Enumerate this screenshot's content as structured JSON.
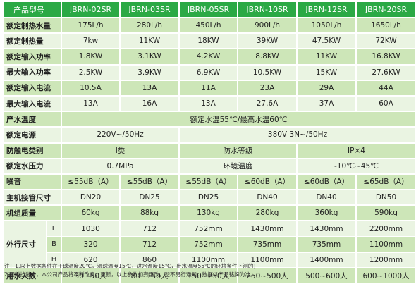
{
  "header": {
    "label": "产品型号",
    "models": [
      "JBRN-02SR",
      "JBRN-03SR",
      "JBRN-05SR",
      "JBRN-10SR",
      "JBRN-12SR",
      "JBRN-20SR"
    ]
  },
  "rows": [
    {
      "label": "额定制热水量",
      "values": [
        "175L/h",
        "280L/h",
        "450L/h",
        "900L/h",
        "1050L/h",
        "1650L/h"
      ]
    },
    {
      "label": "额定制热量",
      "values": [
        "7kw",
        "11KW",
        "18KW",
        "39KW",
        "47.5KW",
        "72KW"
      ]
    },
    {
      "label": "额定输入功率",
      "values": [
        "1.8KW",
        "3.1KW",
        "4.2KW",
        "8.8KW",
        "11KW",
        "16.8KW"
      ]
    },
    {
      "label": "最大输入功率",
      "values": [
        "2.5KW",
        "3.9KW",
        "6.9KW",
        "10.5KW",
        "15KW",
        "27.6KW"
      ]
    },
    {
      "label": "额定输入电流",
      "values": [
        "10.5A",
        "13A",
        "11A",
        "23A",
        "29A",
        "44A"
      ]
    },
    {
      "label": "最大输入电流",
      "values": [
        "13A",
        "16A",
        "13A",
        "27.6A",
        "37A",
        "60A"
      ]
    }
  ],
  "water_temp": {
    "label": "产水温度",
    "value": "额定水温55℃/最高水温60℃"
  },
  "power": {
    "label": "额定电源",
    "value_a": "220V~/50Hz",
    "value_b": "380V  3N~/50Hz"
  },
  "shock": {
    "label": "防触电类别",
    "value": "Ⅰ类",
    "waterproof_label": "防水等级",
    "waterproof_value": "IP×4"
  },
  "pressure": {
    "label": "额定水压力",
    "value": "0.7MPa",
    "ambient_label": "环境温度",
    "ambient_value": "-10℃~45℃"
  },
  "noise": {
    "label": "噪音",
    "values": [
      "≤55dB（A）",
      "≤55dB（A）",
      "≤55dB（A）",
      "≤60dB（A）",
      "≤60dB（A）",
      "≤65dB（A）"
    ]
  },
  "pipe": {
    "label": "主机接管尺寸",
    "values": [
      "DN20",
      "DN25",
      "DN25",
      "DN40",
      "DN40",
      "DN50"
    ]
  },
  "weight": {
    "label": "机组质量",
    "values": [
      "60kg",
      "88kg",
      "130kg",
      "280kg",
      "360kg",
      "590kg"
    ]
  },
  "dimensions": {
    "label": "外行尺寸",
    "rows": [
      {
        "axis": "L",
        "values": [
          "1030",
          "712",
          "752mm",
          "1430mm",
          "1430mm",
          "2200mm"
        ]
      },
      {
        "axis": "B",
        "values": [
          "320",
          "712",
          "752mm",
          "735mm",
          "735mm",
          "1100mm"
        ]
      },
      {
        "axis": "H",
        "values": [
          "620",
          "860",
          "1100mm",
          "1100mm",
          "1400mm",
          "1200mm"
        ]
      }
    ]
  },
  "users": {
    "label": "用水人数",
    "values": [
      "30~50人",
      "80~150人",
      "150~250人",
      "250~500人",
      "500~600人",
      "600~1000人"
    ]
  },
  "notes": [
    "注：1.以上数据条件在干球温度20℃，湿球温度15℃，进水温度15℃，出水温度55℃的环境条件下测的；",
    "2.因科技进步，本公司产品将不断改良，更新，以上参数如有更改，恕不另行通知，数据以产品铭牌为准。"
  ]
}
